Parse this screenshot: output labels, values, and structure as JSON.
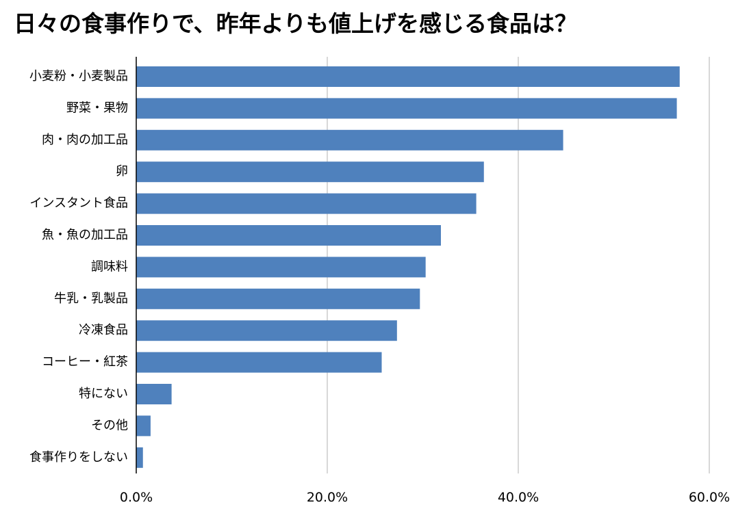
{
  "chart_data": {
    "type": "bar",
    "orientation": "horizontal",
    "title": "日々の食事作りで、昨年よりも値上げを感じる食品は？",
    "categories": [
      "小麦粉・小麦製品",
      "野菜・果物",
      "肉・肉の加工品",
      "卵",
      "インスタント食品",
      "魚・魚の加工品",
      "調味料",
      "牛乳・乳製品",
      "冷凍食品",
      "コーヒー・紅茶",
      "特にない",
      "その他",
      "食事作りをしない"
    ],
    "values": [
      56.9,
      56.6,
      44.7,
      36.4,
      35.6,
      31.9,
      30.3,
      29.7,
      27.3,
      25.7,
      3.7,
      1.5,
      0.7
    ],
    "xlim": [
      0,
      60
    ],
    "xticks": [
      0,
      20,
      40,
      60
    ],
    "xtick_labels": [
      "0.0%",
      "20.0%",
      "40.0%",
      "60.0%"
    ],
    "xlabel": "",
    "ylabel": "",
    "grid": "vertical",
    "legend": "none",
    "bar_color": "#4f81bd",
    "grid_color": "#cccccc",
    "axis_color": "#000000"
  }
}
